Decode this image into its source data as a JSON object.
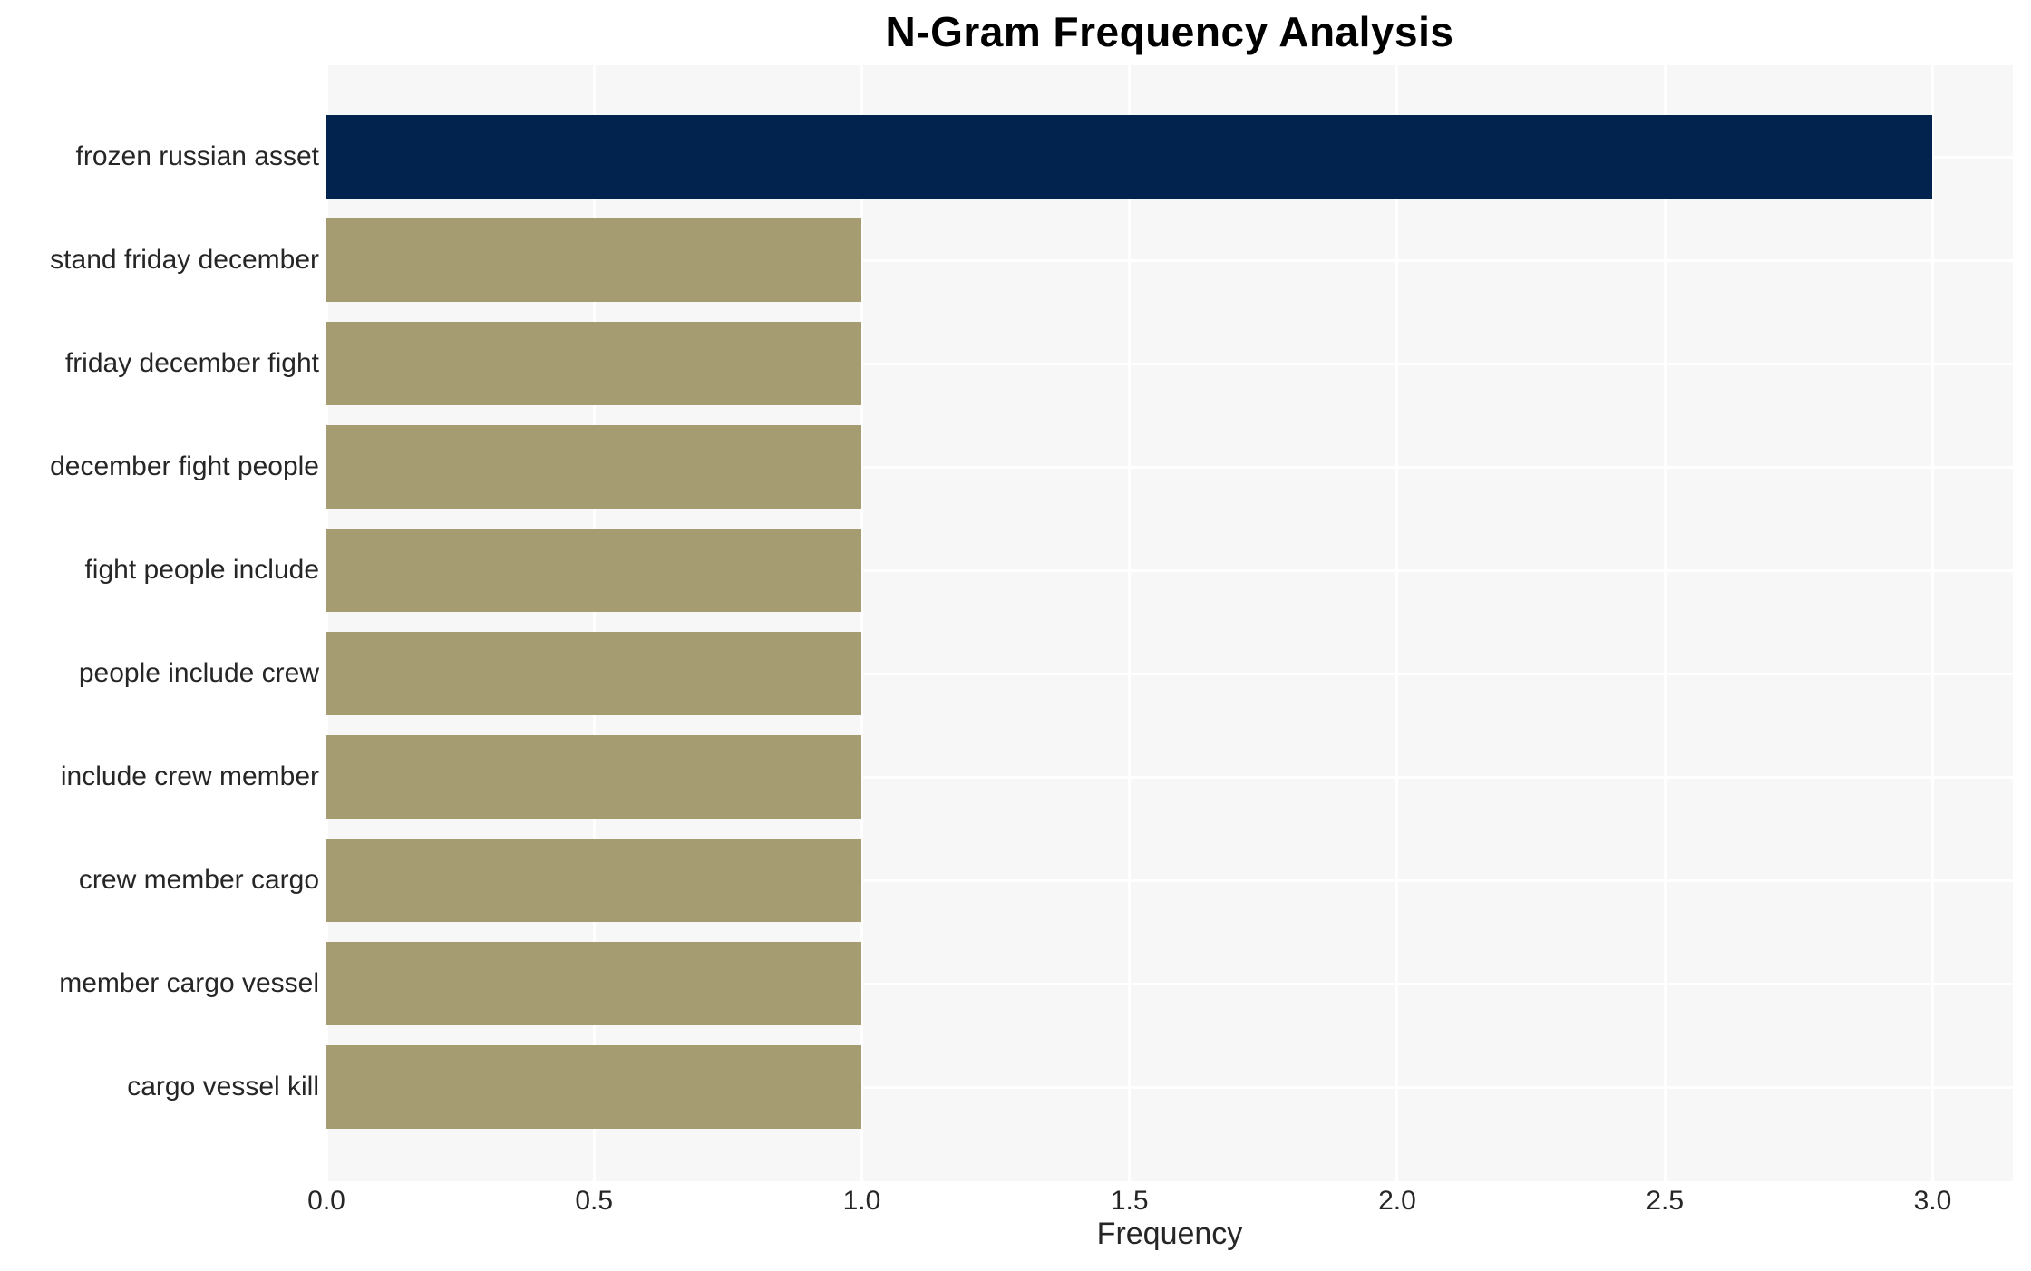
{
  "chart_data": {
    "type": "bar",
    "orientation": "horizontal",
    "title": "N-Gram Frequency Analysis",
    "xlabel": "Frequency",
    "ylabel": "",
    "categories": [
      "frozen russian asset",
      "stand friday december",
      "friday december fight",
      "december fight people",
      "fight people include",
      "people include crew",
      "include crew member",
      "crew member cargo",
      "member cargo vessel",
      "cargo vessel kill"
    ],
    "values": [
      3,
      1,
      1,
      1,
      1,
      1,
      1,
      1,
      1,
      1
    ],
    "xlim": [
      0,
      3.15
    ],
    "xticks": [
      0,
      0.5,
      1,
      1.5,
      2,
      2.5,
      3
    ],
    "xtick_labels": [
      "0.0",
      "0.5",
      "1.0",
      "1.5",
      "2.0",
      "2.5",
      "3.0"
    ],
    "grid": true,
    "legend": false,
    "bar_colors": [
      "#02234d",
      "#a69c72",
      "#a69c72",
      "#a69c72",
      "#a69c72",
      "#a69c72",
      "#a69c72",
      "#a69c72",
      "#a69c72",
      "#a69c72"
    ],
    "colors": {
      "highlight_bar": "#02234d",
      "default_bar": "#a69c72",
      "plot_background": "#f7f7f7",
      "gridline": "#ffffff",
      "tick_text": "#262626",
      "title_text": "#000000"
    }
  }
}
